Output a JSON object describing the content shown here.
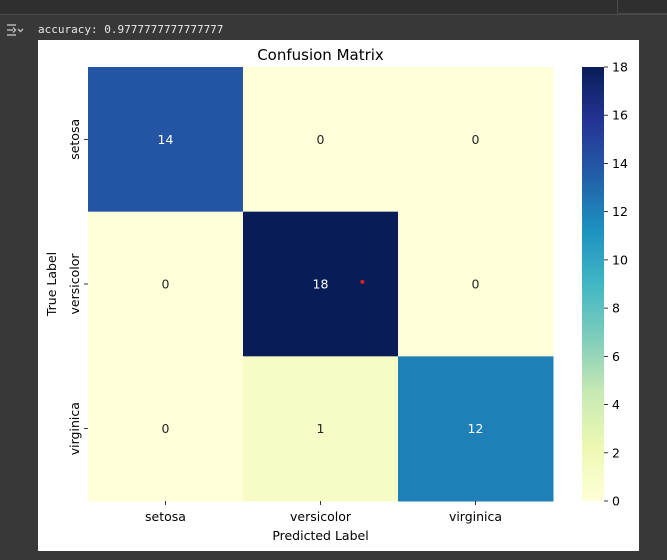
{
  "output": {
    "icon": "output-expand-icon",
    "text": "accuracy: 0.9777777777777777"
  },
  "chart_data": {
    "type": "heatmap",
    "title": "Confusion Matrix",
    "xlabel": "Predicted Label",
    "ylabel": "True Label",
    "x_categories": [
      "setosa",
      "versicolor",
      "virginica"
    ],
    "y_categories": [
      "setosa",
      "versicolor",
      "virginica"
    ],
    "values": [
      [
        14,
        0,
        0
      ],
      [
        0,
        18,
        0
      ],
      [
        0,
        1,
        12
      ]
    ],
    "colormap": "YlGnBu",
    "colorbar": {
      "range": [
        0,
        18
      ],
      "ticks": [
        "0",
        "2",
        "4",
        "6",
        "8",
        "10",
        "12",
        "14",
        "16",
        "18"
      ]
    },
    "annotation_colors": {
      "dark_cell": "#ffffff",
      "light_cell": "#262626"
    }
  }
}
